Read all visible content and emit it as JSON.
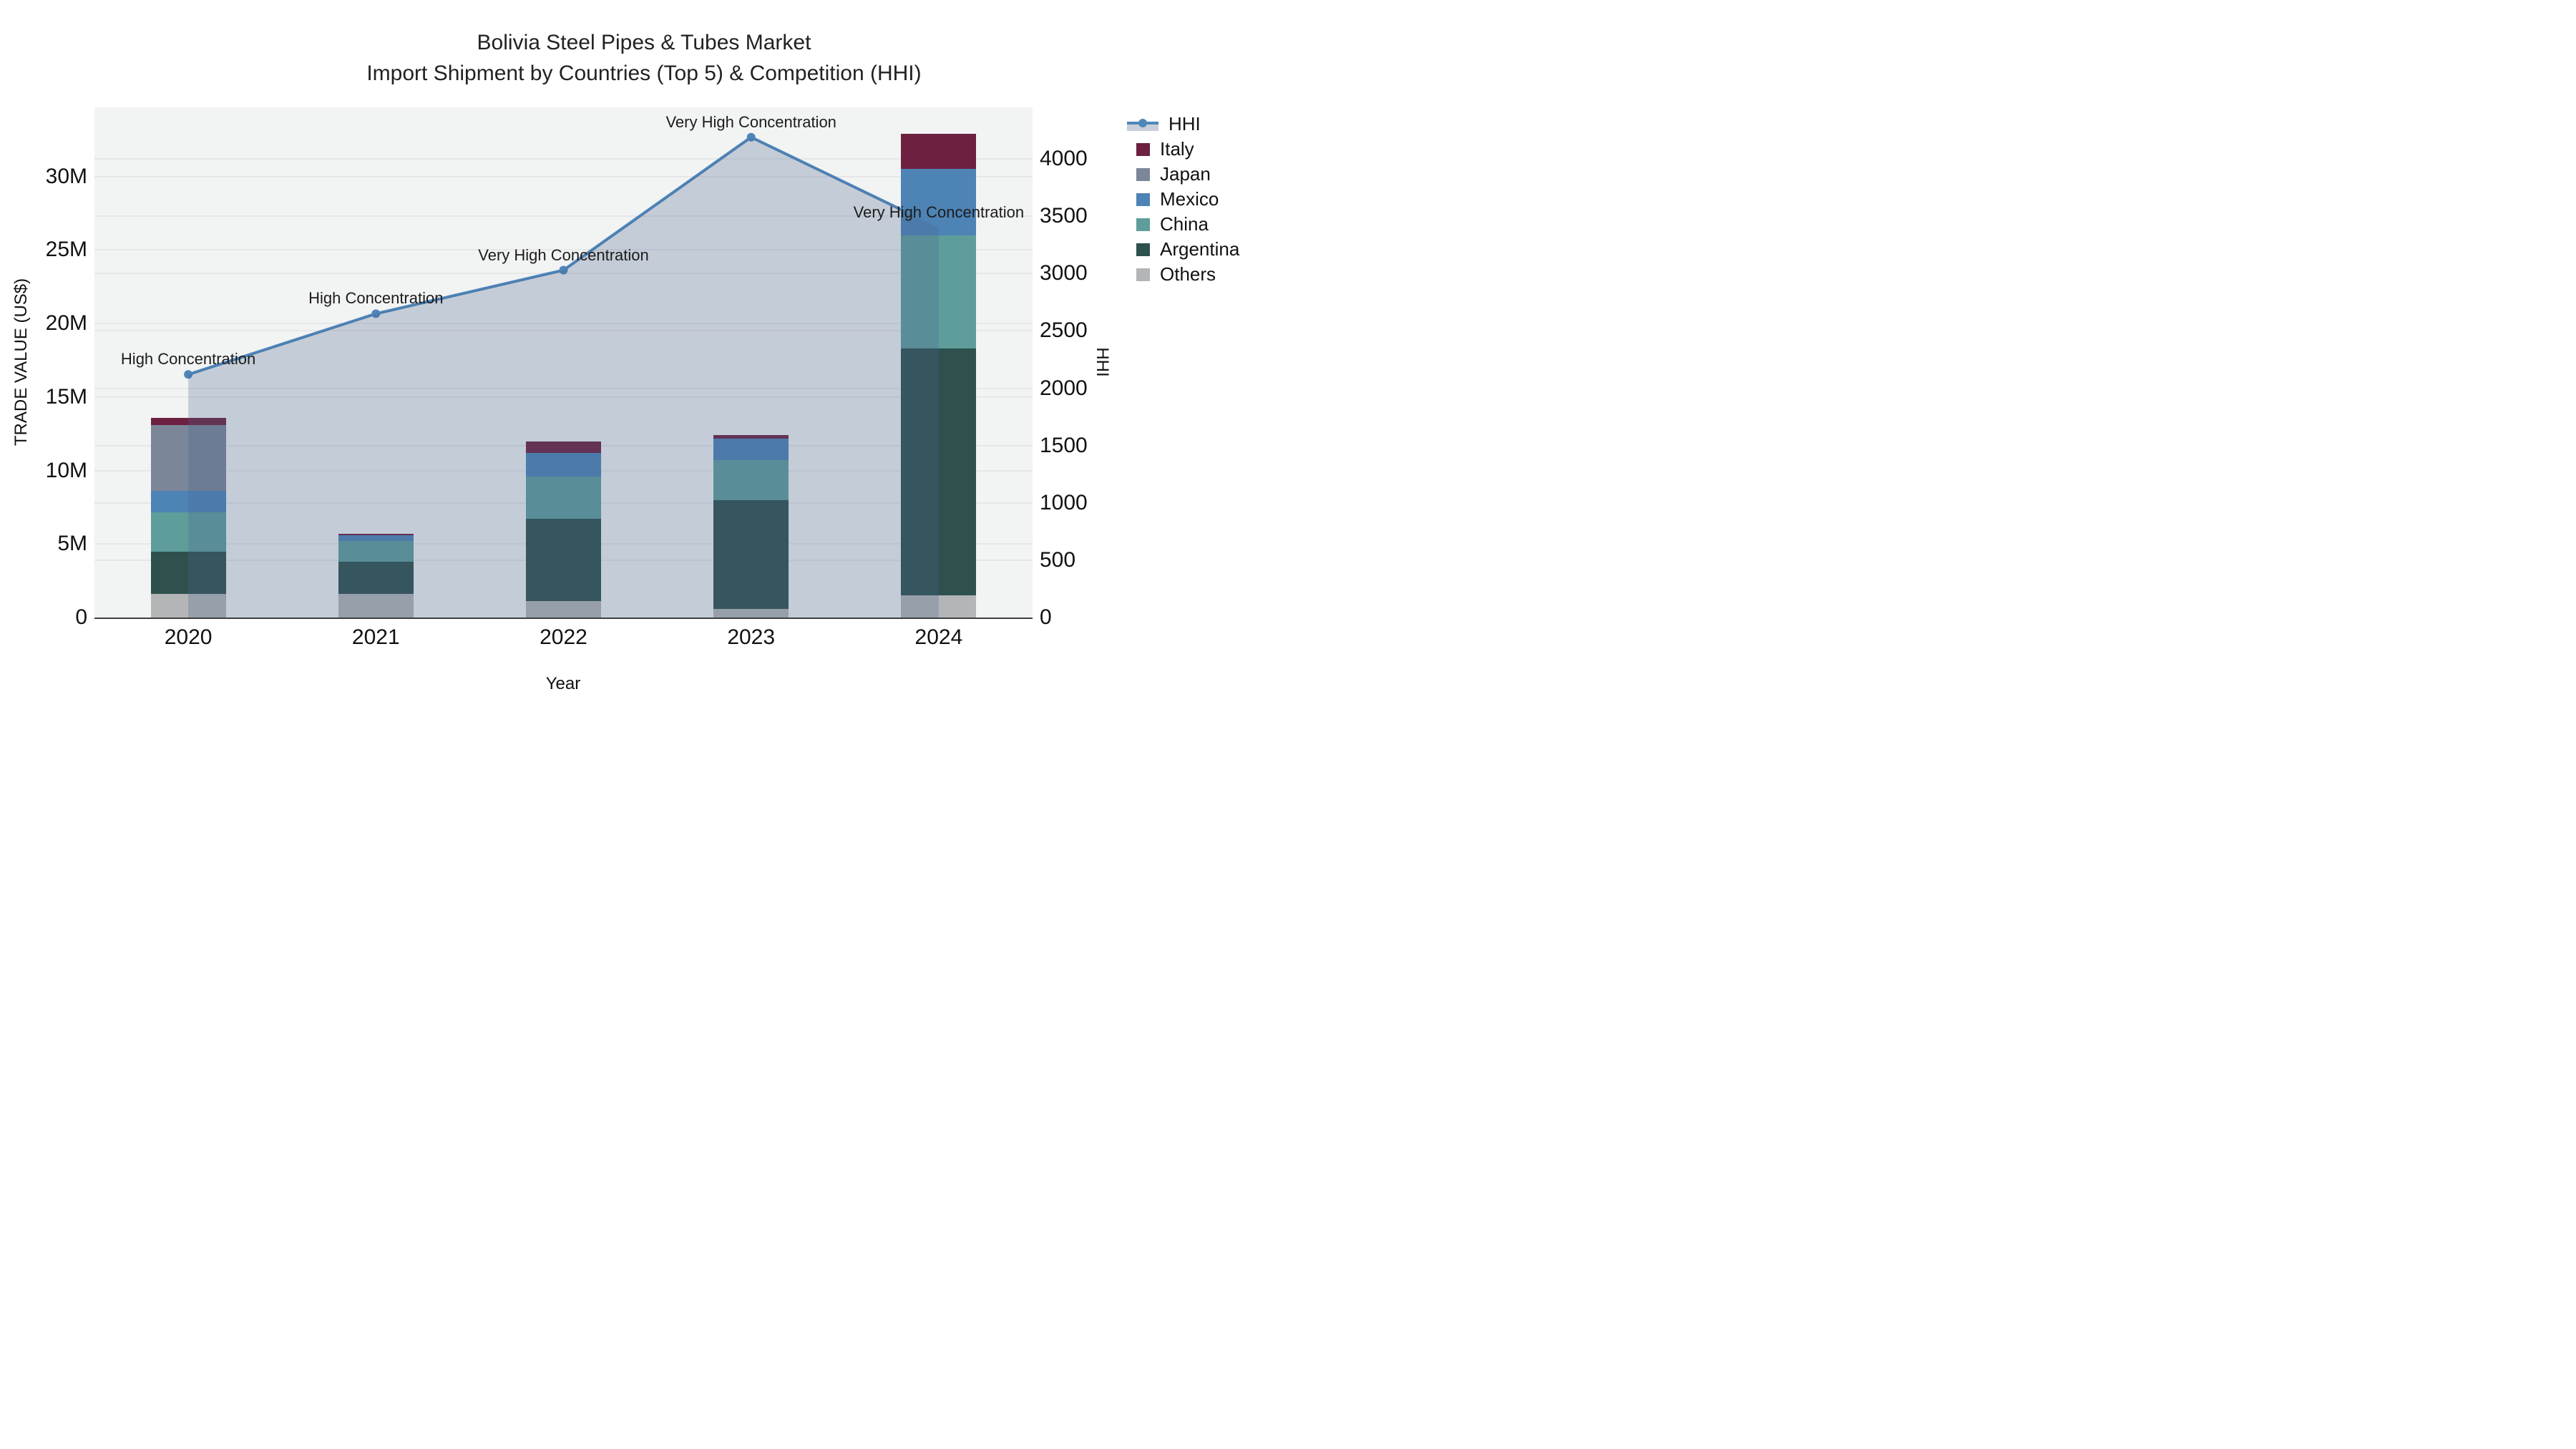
{
  "figure": {
    "title_line1": "Bolivia Steel Pipes & Tubes Market",
    "title_line2": "Import Shipment by Countries (Top 5) & Competition (HHI)"
  },
  "chart_data": {
    "type": "bar+line",
    "title": "Bolivia Steel Pipes & Tubes Market — Import Shipment by Countries (Top 5) & Competition (HHI)",
    "categories": [
      "2020",
      "2021",
      "2022",
      "2023",
      "2024"
    ],
    "bar_unit": "million US$",
    "stack_order_bottom_to_top": [
      "Others",
      "Argentina",
      "China",
      "Mexico",
      "Japan",
      "Italy"
    ],
    "series": [
      {
        "name": "Others",
        "color": "#b4b5b7",
        "values_musd": [
          1.6,
          1.6,
          1.1,
          0.6,
          1.5
        ]
      },
      {
        "name": "Argentina",
        "color": "#2e514e",
        "values_musd": [
          2.9,
          2.2,
          5.6,
          7.4,
          16.8
        ]
      },
      {
        "name": "China",
        "color": "#5f9d9b",
        "values_musd": [
          2.65,
          1.4,
          2.9,
          2.7,
          7.7
        ]
      },
      {
        "name": "Mexico",
        "color": "#4d83b5",
        "values_musd": [
          1.45,
          0.4,
          1.6,
          1.45,
          4.5
        ]
      },
      {
        "name": "Japan",
        "color": "#7b8699",
        "values_musd": [
          4.5,
          0,
          0,
          0,
          0
        ]
      },
      {
        "name": "Italy",
        "color": "#6d2040",
        "values_musd": [
          0.5,
          0.1,
          0.8,
          0.25,
          2.4
        ]
      }
    ],
    "bar_totals_musd": [
      13.6,
      5.7,
      12.0,
      12.4,
      32.9
    ],
    "hhi": {
      "name": "HHI",
      "color": "#4e86ba",
      "fill_color": "rgba(73,101,140,0.27)",
      "values": [
        2120,
        2650,
        3030,
        4190,
        3400
      ]
    },
    "annotations": [
      {
        "year": "2020",
        "text": "High Concentration"
      },
      {
        "year": "2021",
        "text": "High Concentration"
      },
      {
        "year": "2022",
        "text": "Very High Concentration"
      },
      {
        "year": "2023",
        "text": "Very High Concentration"
      },
      {
        "year": "2024",
        "text": "Very High Concentration"
      }
    ],
    "xlabel": "Year",
    "y_left": {
      "label": "TRADE VALUE (US$)",
      "tick_labels": [
        "0",
        "5M",
        "10M",
        "15M",
        "20M",
        "25M",
        "30M"
      ],
      "tick_values_musd": [
        0,
        5,
        10,
        15,
        20,
        25,
        30
      ],
      "range_musd": [
        0,
        34.7
      ],
      "grid_step_musd": 5
    },
    "y_right": {
      "label": "HHI",
      "tick_labels": [
        "0",
        "500",
        "1000",
        "1500",
        "2000",
        "2500",
        "3000",
        "3500",
        "4000"
      ],
      "tick_values": [
        0,
        500,
        1000,
        1500,
        2000,
        2500,
        3000,
        3500,
        4000
      ],
      "range": [
        0,
        4450
      ],
      "grid_step": 500
    },
    "legend_order": [
      "HHI",
      "Italy",
      "Japan",
      "Mexico",
      "China",
      "Argentina",
      "Others"
    ],
    "layout": {
      "plot_bg": "#f2f3f3",
      "grid_on": true,
      "legend_position": "right"
    }
  }
}
